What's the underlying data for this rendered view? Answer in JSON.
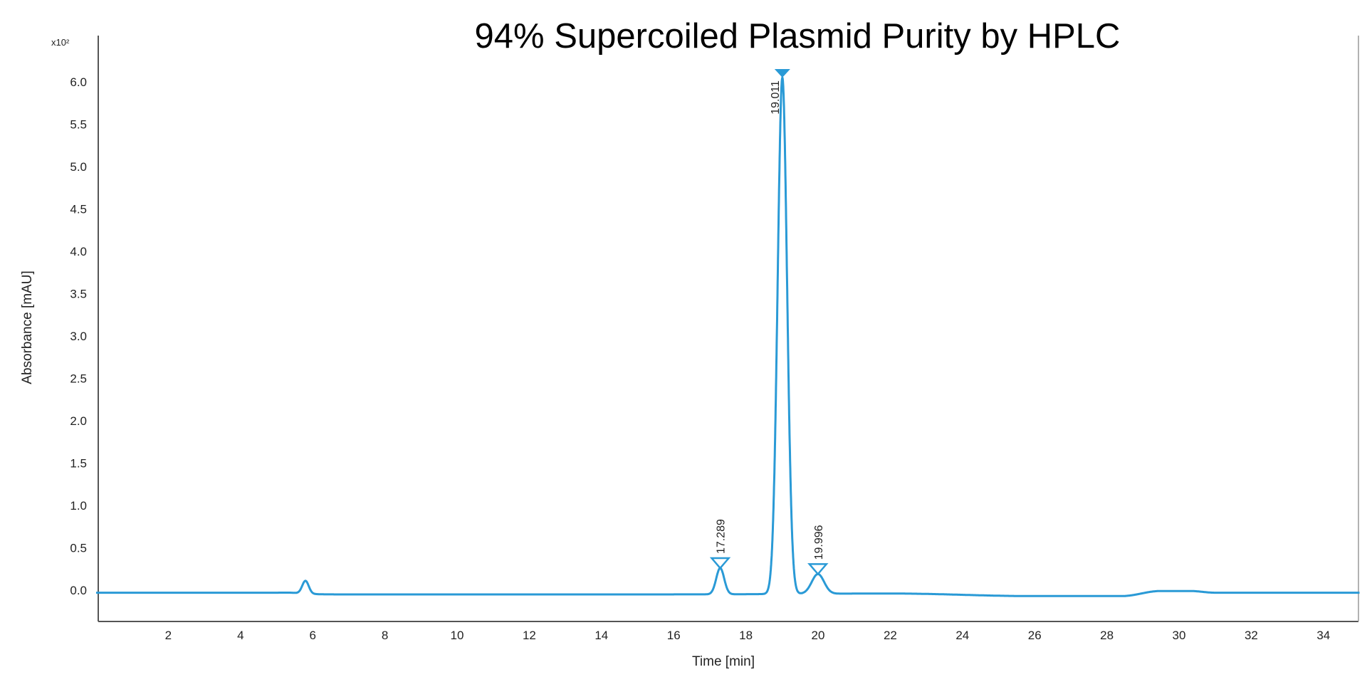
{
  "chart_data": {
    "type": "line",
    "title": "94% Supercoiled Plasmid Purity by HPLC",
    "xlabel": "Time [min]",
    "ylabel": "Absorbance [mAU]",
    "y_multiplier_label": "x10²",
    "xlim": [
      0,
      35
    ],
    "ylim": [
      -0.3,
      6.6
    ],
    "xticks": [
      2,
      4,
      6,
      8,
      10,
      12,
      14,
      16,
      18,
      20,
      22,
      24,
      26,
      28,
      30,
      32,
      34
    ],
    "yticks": [
      0.0,
      0.5,
      1.0,
      1.5,
      2.0,
      2.5,
      3.0,
      3.5,
      4.0,
      4.5,
      5.0,
      5.5,
      6.0
    ],
    "grid": false,
    "series_color": "#2a9ad6",
    "baseline": [
      [
        0,
        -0.03
      ],
      [
        5,
        -0.03
      ],
      [
        6.5,
        -0.05
      ],
      [
        16,
        -0.05
      ],
      [
        22,
        -0.04
      ],
      [
        26,
        -0.07
      ],
      [
        28.4,
        -0.07
      ],
      [
        29.5,
        -0.01
      ],
      [
        30.3,
        -0.01
      ],
      [
        31,
        -0.03
      ],
      [
        35,
        -0.03
      ]
    ],
    "peaks": [
      {
        "rt": 5.4,
        "height": -0.03,
        "width": 0.15
      },
      {
        "rt": 5.8,
        "height": 0.11,
        "width": 0.09
      },
      {
        "rt": 17.289,
        "height": 0.26,
        "width": 0.11,
        "label": "17.289",
        "marker": "open"
      },
      {
        "rt": 19.011,
        "height": 6.05,
        "width": 0.13,
        "label": "19.011",
        "marker": "filled"
      },
      {
        "rt": 19.996,
        "height": 0.19,
        "width": 0.17,
        "label": "19.996",
        "marker": "open"
      }
    ]
  }
}
